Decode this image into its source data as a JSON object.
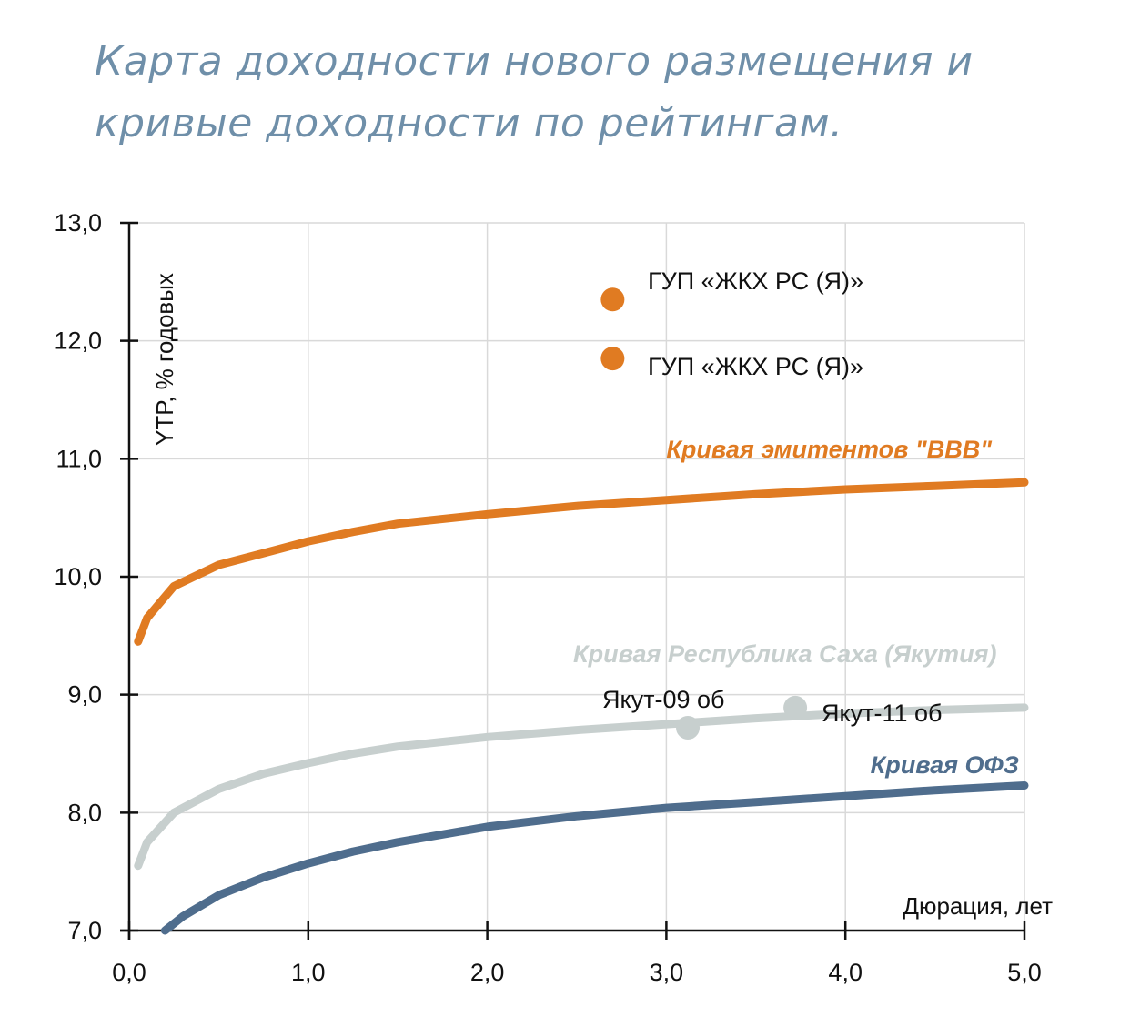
{
  "title_line1": "Карта доходности нового размещения и",
  "title_line2": "кривые доходности по рейтингам.",
  "chart_data": {
    "type": "line",
    "ylabel": "YTP, % годовых",
    "xlabel": "Дюрация, лет",
    "xlim": [
      0,
      5
    ],
    "ylim": [
      7,
      13
    ],
    "x_ticks": [
      "0,0",
      "1,0",
      "2,0",
      "3,0",
      "4,0",
      "5,0"
    ],
    "y_ticks": [
      "7,0",
      "8,0",
      "9,0",
      "10,0",
      "11,0",
      "12,0",
      "13,0"
    ],
    "grid": true,
    "series": [
      {
        "name": "Кривая эмитентов \"BBB\"",
        "color": "#e07b22",
        "points": [
          [
            0.05,
            9.45
          ],
          [
            0.1,
            9.65
          ],
          [
            0.25,
            9.92
          ],
          [
            0.5,
            10.1
          ],
          [
            0.75,
            10.2
          ],
          [
            1.0,
            10.3
          ],
          [
            1.25,
            10.38
          ],
          [
            1.5,
            10.45
          ],
          [
            2.0,
            10.53
          ],
          [
            2.5,
            10.6
          ],
          [
            3.0,
            10.65
          ],
          [
            3.5,
            10.7
          ],
          [
            4.0,
            10.74
          ],
          [
            4.5,
            10.77
          ],
          [
            5.0,
            10.8
          ]
        ]
      },
      {
        "name": "Кривая Республика Саха (Якутия)",
        "color": "#c7cfce",
        "points": [
          [
            0.05,
            7.55
          ],
          [
            0.1,
            7.75
          ],
          [
            0.25,
            8.0
          ],
          [
            0.5,
            8.2
          ],
          [
            0.75,
            8.33
          ],
          [
            1.0,
            8.42
          ],
          [
            1.25,
            8.5
          ],
          [
            1.5,
            8.56
          ],
          [
            2.0,
            8.64
          ],
          [
            2.5,
            8.7
          ],
          [
            3.0,
            8.75
          ],
          [
            3.5,
            8.8
          ],
          [
            4.0,
            8.84
          ],
          [
            4.5,
            8.87
          ],
          [
            5.0,
            8.89
          ]
        ]
      },
      {
        "name": "Кривая ОФЗ",
        "color": "#4f6d8d",
        "points": [
          [
            0.2,
            7.0
          ],
          [
            0.3,
            7.12
          ],
          [
            0.5,
            7.3
          ],
          [
            0.75,
            7.45
          ],
          [
            1.0,
            7.57
          ],
          [
            1.25,
            7.67
          ],
          [
            1.5,
            7.75
          ],
          [
            2.0,
            7.88
          ],
          [
            2.5,
            7.97
          ],
          [
            3.0,
            8.04
          ],
          [
            3.5,
            8.09
          ],
          [
            4.0,
            8.14
          ],
          [
            4.5,
            8.19
          ],
          [
            5.0,
            8.23
          ]
        ]
      }
    ],
    "points": [
      {
        "label": "ГУП «ЖКХ РС (Я)»",
        "x": 2.7,
        "y": 12.35,
        "color": "#e07b22"
      },
      {
        "label": "ГУП «ЖКХ РС (Я)»",
        "x": 2.7,
        "y": 11.85,
        "color": "#e07b22"
      },
      {
        "label": "Якут-09 об",
        "x": 3.12,
        "y": 8.72,
        "color": "#c7cfce"
      },
      {
        "label": "Якут-11 об",
        "x": 3.72,
        "y": 8.89,
        "color": "#c7cfce"
      }
    ]
  }
}
